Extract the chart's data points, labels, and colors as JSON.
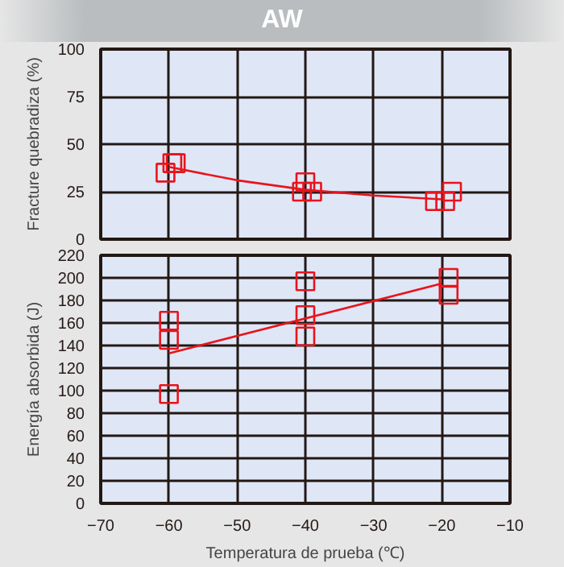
{
  "chart_data": [
    {
      "type": "scatter",
      "title": "AW",
      "ylabel": "Fracture quebradiza (%)",
      "xlim": [
        -70,
        -10
      ],
      "xticks": [
        -70,
        -60,
        -50,
        -40,
        -30,
        -20,
        -10
      ],
      "ylim": [
        0,
        100
      ],
      "yticks": [
        0,
        25,
        50,
        75,
        100
      ],
      "tick_labels": "y",
      "grid": true,
      "marker": "square",
      "series": [
        {
          "color": "#e8141c",
          "x": [
            -60.5,
            -59.5,
            -59,
            -40,
            -40.5,
            -39,
            -21,
            -19.5,
            -18.5
          ],
          "values": [
            35,
            40,
            40,
            30,
            25,
            25,
            20,
            20,
            25
          ]
        },
        {
          "type": "line",
          "marker": "none",
          "color": "#e8141c",
          "x": [
            -60,
            -50,
            -40,
            -30,
            -20
          ],
          "values": [
            38,
            31,
            26,
            23,
            21
          ]
        }
      ]
    },
    {
      "type": "scatter",
      "xlabel": "Temperatura de prueba (℃)",
      "ylabel": "Energía absorbida (J)",
      "xlim": [
        -70,
        -10
      ],
      "xticks": [
        {
          "value": -70,
          "label": "−70"
        },
        {
          "value": -60,
          "label": "−60"
        },
        {
          "value": -50,
          "label": "−50"
        },
        {
          "value": -40,
          "label": "−40"
        },
        {
          "value": -30,
          "label": "−30"
        },
        {
          "value": -20,
          "label": "−20"
        },
        {
          "value": -10,
          "label": "−10"
        }
      ],
      "ylim": [
        0,
        220
      ],
      "yticks": [
        0,
        20,
        40,
        60,
        80,
        100,
        120,
        140,
        160,
        180,
        200,
        220
      ],
      "grid": true,
      "marker": "square",
      "series": [
        {
          "color": "#e8141c",
          "x": [
            -60,
            -60,
            -60,
            -40,
            -40,
            -40,
            -19,
            -19
          ],
          "values": [
            162,
            145,
            97,
            197,
            167,
            148,
            200,
            185
          ]
        },
        {
          "type": "line",
          "marker": "none",
          "color": "#e8141c",
          "x": [
            -60,
            -20
          ],
          "values": [
            133,
            195
          ]
        }
      ]
    }
  ]
}
